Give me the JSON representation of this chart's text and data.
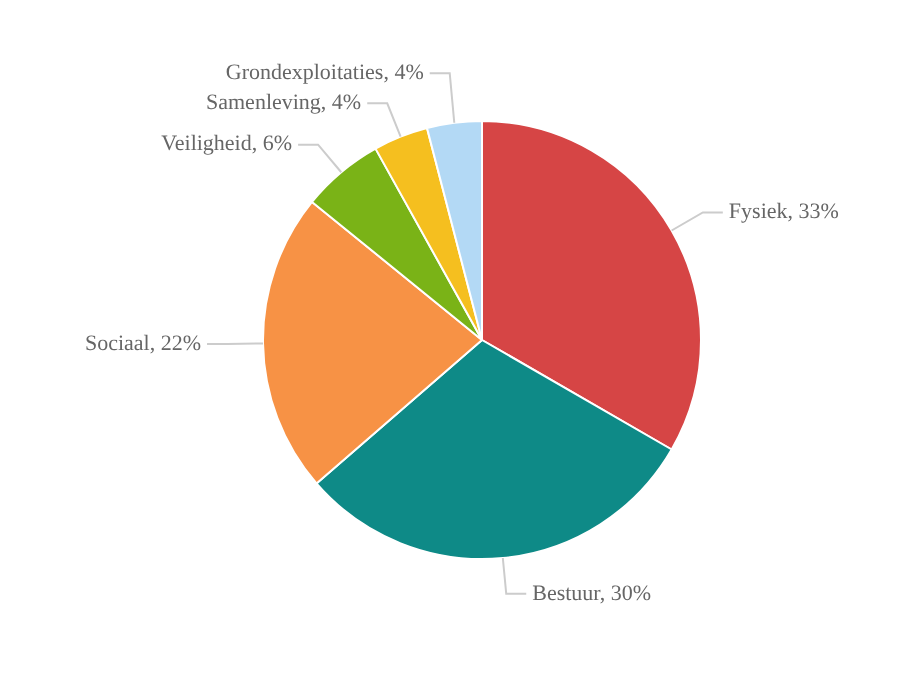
{
  "chart_data": {
    "type": "pie",
    "categories": [
      "Fysiek",
      "Bestuur",
      "Sociaal",
      "Veiligheid",
      "Samenleving",
      "Grondexploitaties"
    ],
    "values": [
      33,
      30,
      22,
      6,
      4,
      4
    ],
    "value_labels": [
      "33%",
      "30%",
      "22%",
      "6%",
      "4%",
      "4%"
    ],
    "colors": [
      "#d64545",
      "#0e8a87",
      "#f79245",
      "#7ab317",
      "#f5bf1f",
      "#b3d9f5"
    ],
    "legend": false
  }
}
